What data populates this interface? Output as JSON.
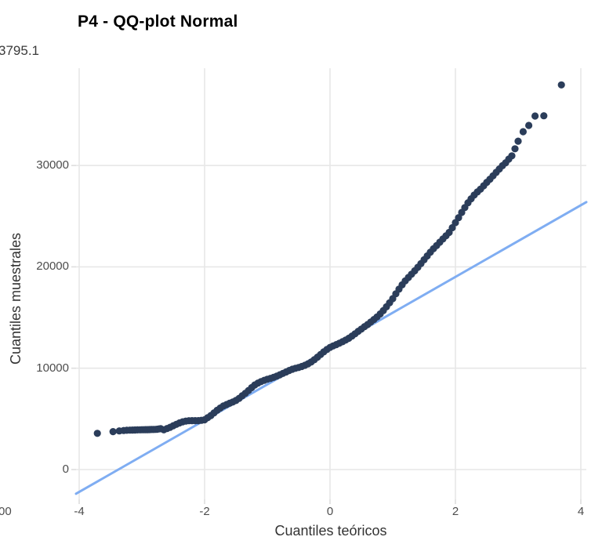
{
  "header": {
    "title": "P4 - QQ-plot Normal"
  },
  "cropped_fragments": {
    "top_left": "3795.1",
    "bottom_left": "00"
  },
  "chart_data": {
    "type": "scatter",
    "title": "P4 - QQ-plot Normal",
    "xlabel": "Cuantiles teóricos",
    "ylabel": "Cuantiles muestrales",
    "x_ticks": [
      -4,
      -2,
      0,
      2,
      4
    ],
    "y_ticks": [
      0,
      10000,
      20000,
      30000
    ],
    "xlim": [
      -4.06,
      4.09
    ],
    "ylim": [
      -2950,
      39700
    ],
    "grid": "major-only",
    "legend": "none",
    "series": [
      {
        "name": "sample-quantiles",
        "type": "points",
        "curve_anchors": [
          [
            -3.71,
            3570
          ],
          [
            -3.5,
            3720
          ],
          [
            -3.38,
            3800
          ],
          [
            -3.3,
            3850
          ],
          [
            -3.2,
            3890
          ],
          [
            -3.05,
            3920
          ],
          [
            -2.9,
            3940
          ],
          [
            -2.78,
            3960
          ],
          [
            -2.7,
            4030
          ],
          [
            -2.6,
            4250
          ],
          [
            -2.5,
            4400
          ],
          [
            -2.4,
            4500
          ],
          [
            -2.3,
            4580
          ],
          [
            -2.2,
            4660
          ],
          [
            -2.1,
            4760
          ],
          [
            -2.0,
            4900
          ],
          [
            -1.9,
            5300
          ],
          [
            -1.8,
            5800
          ],
          [
            -1.7,
            6300
          ],
          [
            -1.6,
            6700
          ],
          [
            -1.5,
            7050
          ],
          [
            -1.4,
            7450
          ],
          [
            -1.3,
            7800
          ],
          [
            -1.2,
            8200
          ],
          [
            -1.1,
            8500
          ],
          [
            -1.0,
            8800
          ],
          [
            -0.9,
            9050
          ],
          [
            -0.8,
            9300
          ],
          [
            -0.7,
            9550
          ],
          [
            -0.6,
            9850
          ],
          [
            -0.5,
            10150
          ],
          [
            -0.4,
            10500
          ],
          [
            -0.3,
            10850
          ],
          [
            -0.2,
            11200
          ],
          [
            -0.1,
            11550
          ],
          [
            0.0,
            11900
          ],
          [
            0.1,
            12200
          ],
          [
            0.2,
            12550
          ],
          [
            0.3,
            12900
          ],
          [
            0.4,
            13300
          ],
          [
            0.5,
            13750
          ],
          [
            0.6,
            14300
          ],
          [
            0.7,
            14950
          ],
          [
            0.8,
            15600
          ],
          [
            0.9,
            16250
          ],
          [
            1.0,
            16900
          ],
          [
            1.1,
            17700
          ],
          [
            1.2,
            18500
          ],
          [
            1.3,
            19200
          ],
          [
            1.4,
            19900
          ],
          [
            1.5,
            20600
          ],
          [
            1.6,
            21300
          ],
          [
            1.7,
            22000
          ],
          [
            1.8,
            22800
          ],
          [
            1.9,
            23600
          ],
          [
            2.0,
            24600
          ],
          [
            2.1,
            25500
          ],
          [
            2.2,
            26300
          ],
          [
            2.3,
            27000
          ],
          [
            2.4,
            27600
          ],
          [
            2.5,
            28300
          ],
          [
            2.6,
            28900
          ],
          [
            2.7,
            29500
          ],
          [
            2.8,
            30100
          ],
          [
            2.9,
            30900
          ],
          [
            3.0,
            32400
          ],
          [
            3.08,
            33330
          ],
          [
            3.17,
            33950
          ],
          [
            3.27,
            34880
          ],
          [
            3.41,
            34900
          ],
          [
            3.69,
            37951
          ]
        ],
        "point_t_tail_left": [
          -3.71,
          -3.46,
          -3.36,
          -3.29,
          -3.24,
          -3.19,
          -3.15,
          -3.11,
          -3.07,
          -3.03,
          -3.0,
          -2.97,
          -2.94,
          -2.91,
          -2.88,
          -2.85,
          -2.82,
          -2.79,
          -2.76,
          -2.73
        ],
        "point_t_mid_range": {
          "from": -2.7,
          "to": 3.0,
          "step": 0.05
        },
        "point_t_tail_right": [
          3.08,
          3.17,
          3.27,
          3.41,
          3.69
        ],
        "wiggle": {
          "range": [
            -2.65,
            2.92
          ],
          "terms": [
            [
              150,
              5.3,
              0.4
            ],
            [
              100,
              11,
              2
            ]
          ]
        }
      },
      {
        "name": "qq-reference-line",
        "type": "line",
        "slope": 3536,
        "intercept": 11935
      }
    ],
    "colors": {
      "points": "#2b3d5a",
      "line": "#7fadf2",
      "grid": "#e7e7e7",
      "tick_marks": "#dedede",
      "tick_labels": "#4d4d4d",
      "axis_titles": "#333333",
      "title": "#000000"
    }
  }
}
